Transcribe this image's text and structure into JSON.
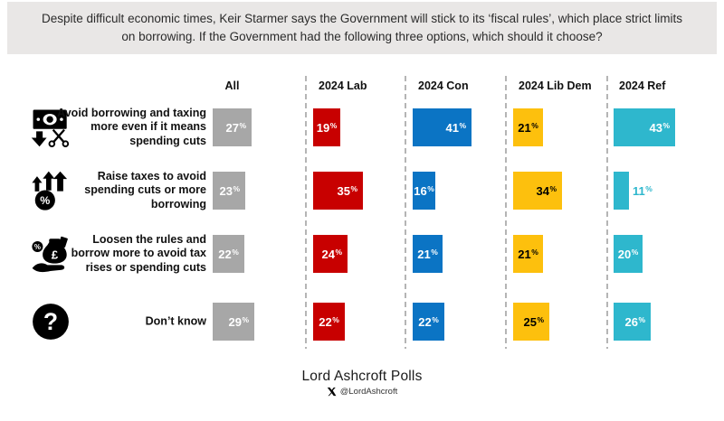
{
  "chart_data": {
    "type": "bar",
    "orientation": "horizontal",
    "title": "Despite difficult economic times, Keir Starmer says the Government will stick to its ‘fiscal rules’, which place strict limits on borrowing. If the Government had the following three options, which should it choose?",
    "unit": "%",
    "xlim": [
      0,
      50
    ],
    "value_labels": "inside-end",
    "grid": "dashed-column-dividers",
    "categories": [
      "Avoid borrowing and taxing more even if it means spending cuts",
      "Raise taxes to avoid spending cuts or more borrowing",
      "Loosen the rules and borrow more to avoid tax rises or spending cuts",
      "Don’t know"
    ],
    "row_icons": [
      "banknote-scissors-icon",
      "tax-percent-up-icon",
      "money-bag-hand-icon",
      "question-mark-icon"
    ],
    "series": [
      {
        "name": "All",
        "color": "#a7a7a7",
        "text_color": "#ffffff",
        "values": [
          27,
          23,
          22,
          29
        ]
      },
      {
        "name": "2024 Lab",
        "color": "#c80000",
        "text_color": "#ffffff",
        "values": [
          19,
          35,
          24,
          22
        ]
      },
      {
        "name": "2024 Con",
        "color": "#0b74c4",
        "text_color": "#ffffff",
        "values": [
          41,
          16,
          21,
          22
        ]
      },
      {
        "name": "2024 Lib Dem",
        "color": "#fdc00d",
        "text_color": "#000000",
        "values": [
          21,
          34,
          21,
          25
        ]
      },
      {
        "name": "2024 Ref",
        "color": "#2eb7cd",
        "text_color": "#ffffff",
        "values": [
          43,
          11,
          20,
          26
        ]
      }
    ]
  },
  "footer": {
    "brand": "Lord Ashcroft Polls",
    "handle": "@LordAshcroft"
  }
}
